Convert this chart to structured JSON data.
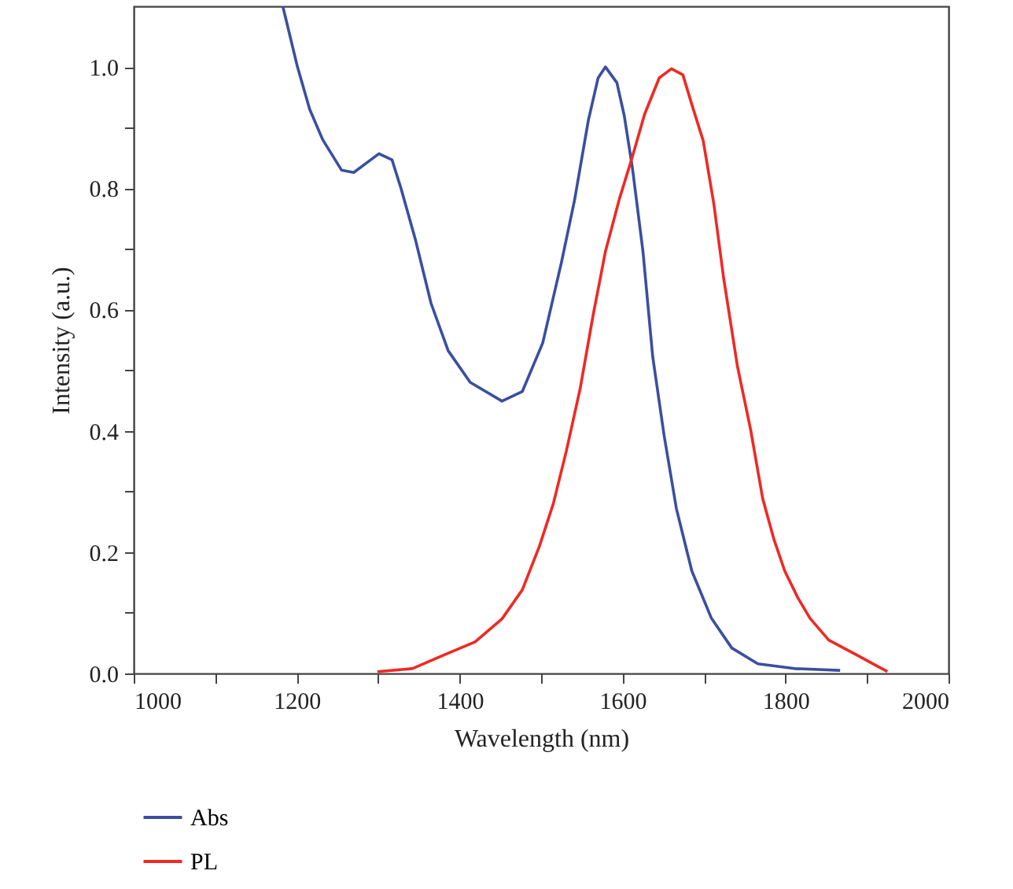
{
  "chart_data": {
    "type": "line",
    "xlabel": "Wavelength (nm)",
    "ylabel": "Intensity (a.u.)",
    "xlim": [
      1000,
      2000
    ],
    "xticks": [
      1000,
      {
        "value": 1100,
        "label": null
      },
      1200,
      {
        "value": 1300,
        "label": null
      },
      1400,
      {
        "value": 1500,
        "label": null
      },
      1600,
      {
        "value": 1700,
        "label": null
      },
      1800,
      {
        "value": 1900,
        "label": null
      },
      2000
    ],
    "ylim": [
      0,
      1.1
    ],
    "yticks": [
      {
        "value": 0,
        "label": "0.0"
      },
      {
        "value": 0.1,
        "label": null
      },
      {
        "value": 0.2,
        "label": "0.2"
      },
      {
        "value": 0.3,
        "label": null
      },
      {
        "value": 0.4,
        "label": "0.4"
      },
      {
        "value": 0.5,
        "label": null
      },
      {
        "value": 0.6,
        "label": "0.6"
      },
      {
        "value": 0.7,
        "label": null
      },
      {
        "value": 0.8,
        "label": "0.8"
      },
      {
        "value": 0.9,
        "label": null
      },
      {
        "value": 1.0,
        "label": "1.0"
      }
    ],
    "grid": false,
    "legend": "bottom",
    "line_style": "solid",
    "series": [
      {
        "name": "Abs",
        "color": "#3a4fa0",
        "x": [
          1183,
          1201,
          1216,
          1232,
          1255,
          1270,
          1288,
          1301,
          1317,
          1328,
          1346,
          1365,
          1386,
          1413,
          1452,
          1477,
          1502,
          1525,
          1541,
          1558,
          1570,
          1579,
          1593,
          1602,
          1612,
          1625,
          1637,
          1651,
          1666,
          1685,
          1709,
          1734,
          1766,
          1811,
          1867
        ],
        "values": [
          1.1,
          1.0,
          0.93,
          0.88,
          0.83,
          0.826,
          0.844,
          0.857,
          0.847,
          0.8,
          0.714,
          0.61,
          0.532,
          0.48,
          0.449,
          0.465,
          0.545,
          0.678,
          0.78,
          0.912,
          0.982,
          1.0,
          0.974,
          0.92,
          0.834,
          0.696,
          0.522,
          0.392,
          0.272,
          0.169,
          0.091,
          0.042,
          0.016,
          0.008,
          0.005
        ]
      },
      {
        "name": "PL",
        "color": "#ee2a24",
        "x": [
          1299,
          1342,
          1380,
          1419,
          1452,
          1477,
          1498,
          1515,
          1531,
          1548,
          1564,
          1579,
          1596,
          1612,
          1627,
          1645,
          1660,
          1674,
          1685,
          1699,
          1712,
          1724,
          1741,
          1757,
          1772,
          1786,
          1799,
          1815,
          1830,
          1853,
          1888,
          1907,
          1925
        ],
        "values": [
          0.003,
          0.008,
          0.03,
          0.052,
          0.09,
          0.138,
          0.21,
          0.28,
          0.367,
          0.47,
          0.592,
          0.696,
          0.782,
          0.852,
          0.922,
          0.982,
          0.997,
          0.987,
          0.938,
          0.878,
          0.774,
          0.652,
          0.506,
          0.403,
          0.288,
          0.22,
          0.169,
          0.125,
          0.091,
          0.055,
          0.03,
          0.016,
          0.003
        ]
      }
    ]
  }
}
